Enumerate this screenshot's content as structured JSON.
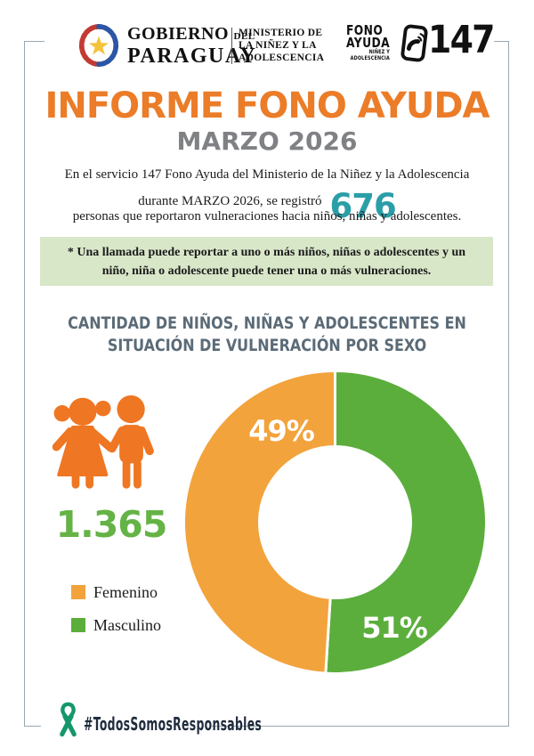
{
  "page": {
    "background": "#ffffff",
    "frame_color": "#9AA7B0"
  },
  "header": {
    "gov_logo": {
      "line1": "GOBIERNO",
      "del": "DEL",
      "line2": "PARAGUAY"
    },
    "ministry": {
      "line1": "MINISTERIO DE",
      "line2": "LA NIÑEZ Y LA",
      "line3": "ADOLESCENCIA"
    },
    "fono_logo": {
      "word1": "FONO",
      "word2": "AYUDA",
      "sub1": "NIÑEZ Y",
      "sub2": "ADOLESCENCIA",
      "number": "147"
    }
  },
  "title": {
    "main": "INFORME FONO AYUDA",
    "main_color": "#EB7C28",
    "subtitle": "MARZO 2026",
    "subtitle_color": "#7F8184"
  },
  "intro": {
    "line1": "En el servicio 147 Fono Ayuda del Ministerio de la Niñez y la Adolescencia",
    "line2_prefix": "durante MARZO 2026, se registró",
    "highlight": "676",
    "highlight_color": "#2B9EA8",
    "line3": "personas que reportaron vulneraciones hacia niños, niñas y adolescentes."
  },
  "note": {
    "bg": "#D9E7C9",
    "line1": "* Una llamada puede reportar a uno o más niños, niñas o adolescentes y un",
    "line2": "niño, niña o adolescente puede tener una o más vulneraciones."
  },
  "section": {
    "line1": "CANTIDAD DE NIÑOS, NIÑAS Y ADOLESCENTES EN",
    "line2": "SITUACIÓN DE VULNERACIÓN POR SEXO",
    "color": "#5B6B77"
  },
  "total": {
    "value": "1.365",
    "color": "#65B346"
  },
  "chart_data": {
    "type": "pie",
    "donut": true,
    "title": "Cantidad de niños, niñas y adolescentes en situación de vulneración por sexo",
    "categories": [
      "Femenino",
      "Masculino"
    ],
    "values": [
      49,
      51
    ],
    "value_labels": [
      "49%",
      "51%"
    ],
    "colors": [
      "#F2A33C",
      "#5BAE3C"
    ],
    "total_children": "1.365",
    "inner_radius_ratio": 0.5,
    "start_angle_deg": 0,
    "legend_position": "left"
  },
  "legend": {
    "items": [
      {
        "label": "Femenino",
        "color": "#F2A33C"
      },
      {
        "label": "Masculino",
        "color": "#5BAE3C"
      }
    ]
  },
  "icons": {
    "kids_color": "#EF7622",
    "ribbon_color": "#15976B"
  },
  "footer": {
    "hashtag": "#TodosSomosResponsables",
    "text_color": "#1E2B3C"
  }
}
